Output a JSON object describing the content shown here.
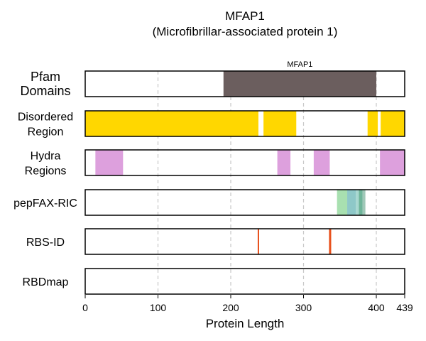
{
  "chart_data": {
    "type": "bar",
    "title": "MFAP1",
    "subtitle": "(Microfibrillar-associated protein 1)",
    "xlabel": "Protein Length",
    "xlim": [
      0,
      439
    ],
    "xticks": [
      0,
      100,
      200,
      300,
      400,
      439
    ],
    "grid_x": [
      100,
      200,
      300,
      400
    ],
    "tracks": [
      {
        "label_lines": [
          "Pfam",
          "Domains"
        ],
        "segments": [
          {
            "start": 190,
            "end": 400,
            "color": "#6b5e5e",
            "label": "MFAP1"
          }
        ]
      },
      {
        "label_lines": [
          "Disordered",
          "Region"
        ],
        "segments": [
          {
            "start": 0,
            "end": 238,
            "color": "#ffd700"
          },
          {
            "start": 245,
            "end": 290,
            "color": "#ffd700"
          },
          {
            "start": 388,
            "end": 402,
            "color": "#ffd700"
          },
          {
            "start": 406,
            "end": 439,
            "color": "#ffd700"
          }
        ]
      },
      {
        "label_lines": [
          "Hydra",
          "Regions"
        ],
        "segments": [
          {
            "start": 14,
            "end": 52,
            "color": "#dda0dd"
          },
          {
            "start": 264,
            "end": 282,
            "color": "#dda0dd"
          },
          {
            "start": 314,
            "end": 336,
            "color": "#dda0dd"
          },
          {
            "start": 405,
            "end": 439,
            "color": "#dda0dd"
          }
        ]
      },
      {
        "label_lines": [
          "pepFAX-RIC"
        ],
        "segments": [
          {
            "start": 346,
            "end": 360,
            "color": "#a8e0b0"
          },
          {
            "start": 360,
            "end": 372,
            "color": "#8ec8c8"
          },
          {
            "start": 372,
            "end": 376,
            "color": "#a8d8d0"
          },
          {
            "start": 376,
            "end": 381,
            "color": "#6fb59a"
          },
          {
            "start": 381,
            "end": 385,
            "color": "#a0c8b8"
          }
        ]
      },
      {
        "label_lines": [
          "RBS-ID"
        ],
        "segments": [
          {
            "start": 237,
            "end": 239,
            "color": "#e8521e"
          },
          {
            "start": 335,
            "end": 338,
            "color": "#e8521e"
          }
        ]
      },
      {
        "label_lines": [
          "RBDmap"
        ],
        "segments": []
      }
    ]
  }
}
